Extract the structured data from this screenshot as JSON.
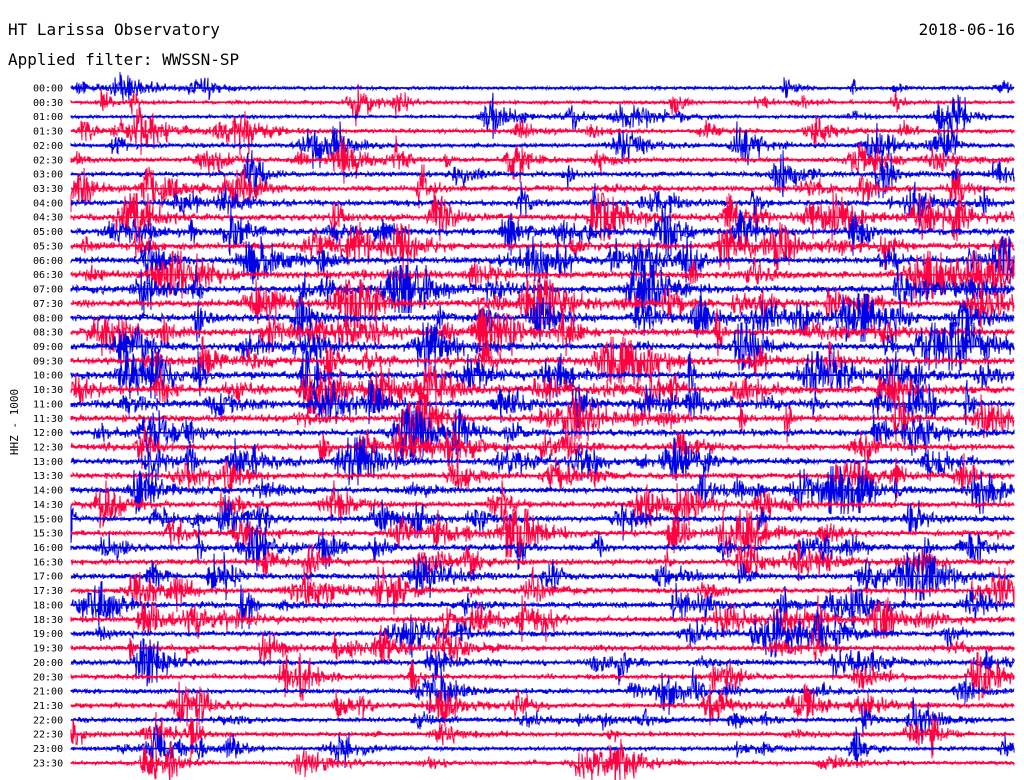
{
  "header": {
    "station": "HT Larissa Observatory",
    "date": "2018-06-16",
    "filter": "Applied filter: WWSSN-SP"
  },
  "chart_data": {
    "type": "line",
    "ylabel": "HHZ - 1000",
    "colors": [
      "#0000e6",
      "#ff0040"
    ],
    "rows": [
      {
        "time": "00:00"
      },
      {
        "time": "00:30"
      },
      {
        "time": "01:00"
      },
      {
        "time": "01:30"
      },
      {
        "time": "02:00"
      },
      {
        "time": "02:30"
      },
      {
        "time": "03:00"
      },
      {
        "time": "03:30"
      },
      {
        "time": "04:00"
      },
      {
        "time": "04:30"
      },
      {
        "time": "05:00"
      },
      {
        "time": "05:30"
      },
      {
        "time": "06:00"
      },
      {
        "time": "06:30"
      },
      {
        "time": "07:00"
      },
      {
        "time": "07:30"
      },
      {
        "time": "08:00"
      },
      {
        "time": "08:30"
      },
      {
        "time": "09:00"
      },
      {
        "time": "09:30"
      },
      {
        "time": "10:00"
      },
      {
        "time": "10:30"
      },
      {
        "time": "11:00"
      },
      {
        "time": "11:30"
      },
      {
        "time": "12:00"
      },
      {
        "time": "12:30"
      },
      {
        "time": "13:00"
      },
      {
        "time": "13:30"
      },
      {
        "time": "14:00"
      },
      {
        "time": "14:30"
      },
      {
        "time": "15:00"
      },
      {
        "time": "15:30"
      },
      {
        "time": "16:00"
      },
      {
        "time": "16:30"
      },
      {
        "time": "17:00"
      },
      {
        "time": "17:30"
      },
      {
        "time": "18:00"
      },
      {
        "time": "18:30"
      },
      {
        "time": "19:00"
      },
      {
        "time": "19:30"
      },
      {
        "time": "20:00"
      },
      {
        "time": "20:30"
      },
      {
        "time": "21:00"
      },
      {
        "time": "21:30"
      },
      {
        "time": "22:00"
      },
      {
        "time": "22:30"
      },
      {
        "time": "23:00"
      },
      {
        "time": "23:30"
      }
    ]
  }
}
